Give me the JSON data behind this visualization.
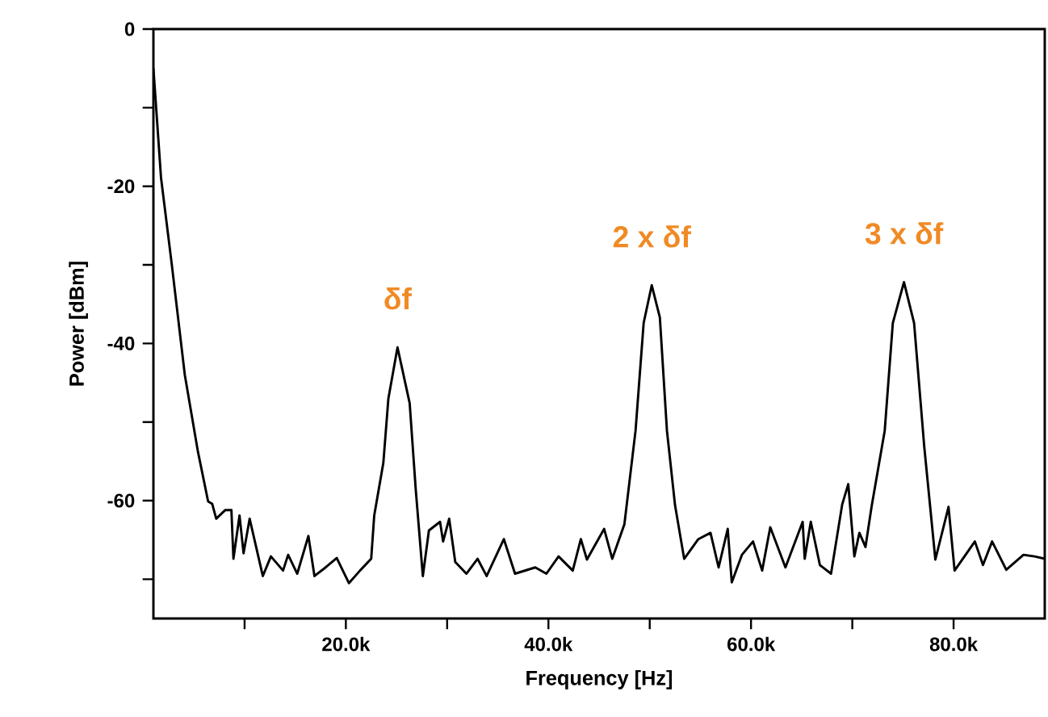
{
  "chart_data": {
    "type": "line",
    "xlabel": "Frequency [Hz]",
    "ylabel": "Power [dBm]",
    "xlim": [
      1000,
      89000
    ],
    "ylim": [
      -75,
      0
    ],
    "xticks": [
      {
        "value": 10000,
        "label": null
      },
      {
        "value": 20000,
        "label": "20.0k"
      },
      {
        "value": 30000,
        "label": null
      },
      {
        "value": 40000,
        "label": "40.0k"
      },
      {
        "value": 50000,
        "label": null
      },
      {
        "value": 60000,
        "label": "60.0k"
      },
      {
        "value": 70000,
        "label": null
      },
      {
        "value": 80000,
        "label": "80.0k"
      }
    ],
    "yticks": [
      {
        "value": -70,
        "label": null
      },
      -60,
      {
        "value": -50,
        "label": null
      },
      -40,
      {
        "value": -30,
        "label": null
      },
      -20,
      {
        "value": -10,
        "label": null
      },
      0
    ],
    "grid": false,
    "marker": "none",
    "line_style": "solid",
    "series": [
      {
        "color": "#000000",
        "x": [
          1000,
          1750,
          2800,
          4100,
          5400,
          6400,
          6800,
          7200,
          8100,
          8700,
          8900,
          9500,
          9900,
          10500,
          11800,
          12600,
          13800,
          14300,
          15200,
          16300,
          16900,
          18000,
          19100,
          20300,
          21400,
          22500,
          22800,
          23700,
          24200,
          25100,
          26300,
          26900,
          27600,
          28200,
          29300,
          29600,
          30200,
          30800,
          31900,
          33000,
          33900,
          35600,
          36700,
          38700,
          39800,
          41000,
          42400,
          43200,
          43800,
          45500,
          46300,
          47500,
          48600,
          49400,
          50200,
          51000,
          51700,
          52500,
          53400,
          54800,
          56000,
          56800,
          57700,
          58100,
          59100,
          60200,
          61100,
          61900,
          63400,
          65100,
          65300,
          65900,
          66800,
          67900,
          69000,
          69600,
          70200,
          70700,
          71300,
          71900,
          73200,
          74000,
          75100,
          76100,
          77100,
          78200,
          79500,
          80100,
          82100,
          82900,
          83800,
          85200,
          86900,
          88000,
          89000
        ],
        "values": [
          -5,
          -18.9,
          -29.8,
          -44,
          -53.8,
          -60.1,
          -60.4,
          -62.3,
          -61.2,
          -61.2,
          -67.4,
          -61.9,
          -66.7,
          -62.3,
          -69.6,
          -67.1,
          -68.9,
          -66.9,
          -69.3,
          -64.5,
          -69.6,
          -68.5,
          -67.3,
          -70.5,
          -68.9,
          -67.4,
          -61.9,
          -55.2,
          -47,
          -40.5,
          -47.6,
          -58.6,
          -69.6,
          -63.8,
          -62.7,
          -65.2,
          -62.3,
          -67.8,
          -69.3,
          -67.4,
          -69.6,
          -64.9,
          -69.3,
          -68.5,
          -69.3,
          -67.1,
          -68.9,
          -64.9,
          -67.5,
          -63.6,
          -67.4,
          -63,
          -51.1,
          -37.4,
          -32.6,
          -36.7,
          -51.1,
          -60.6,
          -67.4,
          -64.9,
          -64.1,
          -68.5,
          -63.6,
          -70.4,
          -66.9,
          -65.2,
          -68.9,
          -63.4,
          -68.5,
          -62.7,
          -67.4,
          -62.7,
          -68.2,
          -69.3,
          -60.5,
          -57.9,
          -67.1,
          -64.1,
          -65.9,
          -60.8,
          -51.1,
          -37.4,
          -32.2,
          -37.4,
          -53.1,
          -67.5,
          -60.8,
          -68.9,
          -65.2,
          -68.2,
          -65.2,
          -68.8,
          -66.9,
          -67.1,
          -67.4
        ]
      }
    ],
    "annotations": [
      {
        "text": "δf",
        "x": 25100,
        "y": -40.5
      },
      {
        "text": "2 x δf",
        "x": 50200,
        "y": -32.6
      },
      {
        "text": "3 x δf",
        "x": 75100,
        "y": -32.2
      }
    ]
  }
}
